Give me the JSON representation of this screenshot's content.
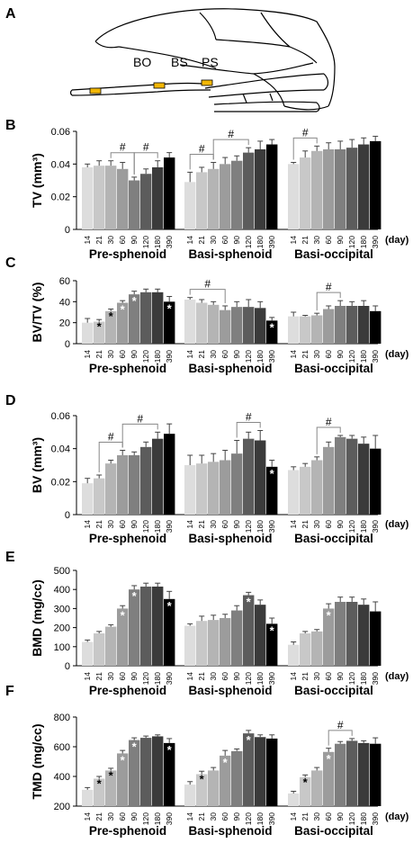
{
  "figure": {
    "panel_a": {
      "letter": "A",
      "labels": [
        "BO",
        "BS",
        "PS"
      ],
      "highlight_color": "#f2b705"
    },
    "day_unit": "(day)",
    "bar_colors": [
      "#dddddd",
      "#c8c8c8",
      "#b4b4b4",
      "#9c9c9c",
      "#7f7f7f",
      "#5c5c5c",
      "#3b3b3b",
      "#000000"
    ],
    "error_color": "#444444",
    "significance_marker": "#",
    "asterisk": "*"
  },
  "chart_data": [
    {
      "panel": "B",
      "type": "bar",
      "ylabel": "TV (mm³)",
      "ylim": [
        0,
        0.06
      ],
      "yticks": [
        "0",
        "0.02",
        "0.04",
        "0.06"
      ],
      "grid": false,
      "groups": [
        {
          "name": "Pre-sphenoid",
          "categories": [
            "14",
            "21",
            "30",
            "60",
            "90",
            "120",
            "180",
            "390"
          ],
          "values": [
            0.038,
            0.039,
            0.039,
            0.037,
            0.03,
            0.034,
            0.038,
            0.044
          ],
          "errors": [
            0.002,
            0.003,
            0.003,
            0.004,
            0.002,
            0.003,
            0.004,
            0.003
          ],
          "asterisks": [
            false,
            false,
            false,
            false,
            false,
            false,
            false,
            false
          ]
        },
        {
          "name": "Basi-sphenoid",
          "categories": [
            "14",
            "21",
            "30",
            "60",
            "90",
            "120",
            "180",
            "390"
          ],
          "values": [
            0.029,
            0.035,
            0.037,
            0.04,
            0.042,
            0.047,
            0.049,
            0.052
          ],
          "errors": [
            0.006,
            0.003,
            0.004,
            0.004,
            0.003,
            0.003,
            0.005,
            0.003
          ],
          "asterisks": [
            false,
            false,
            false,
            false,
            false,
            false,
            false,
            false
          ]
        },
        {
          "name": "Basi-occipital",
          "categories": [
            "14",
            "21",
            "30",
            "60",
            "90",
            "120",
            "180",
            "390"
          ],
          "values": [
            0.04,
            0.044,
            0.048,
            0.049,
            0.049,
            0.05,
            0.052,
            0.054
          ],
          "errors": [
            0.001,
            0.004,
            0.003,
            0.004,
            0.005,
            0.005,
            0.004,
            0.003
          ],
          "asterisks": [
            false,
            false,
            false,
            false,
            false,
            false,
            false,
            false
          ]
        }
      ],
      "significance": [
        {
          "group": 0,
          "from": 2,
          "to": 4,
          "label": "#"
        },
        {
          "group": 0,
          "from": 4,
          "to": 6,
          "label": "#"
        },
        {
          "group": 1,
          "from": 0,
          "to": 2,
          "label": "#"
        },
        {
          "group": 1,
          "from": 2,
          "to": 5,
          "label": "#"
        },
        {
          "group": 2,
          "from": 0,
          "to": 2,
          "label": "#"
        }
      ]
    },
    {
      "panel": "C",
      "type": "bar",
      "ylabel": "BV/TV (%)",
      "ylim": [
        0,
        60
      ],
      "yticks": [
        "0",
        "20",
        "40",
        "60"
      ],
      "grid": false,
      "groups": [
        {
          "name": "Pre-sphenoid",
          "categories": [
            "14",
            "21",
            "30",
            "60",
            "90",
            "120",
            "180",
            "390"
          ],
          "values": [
            20,
            21,
            31,
            39,
            47,
            49,
            49,
            40
          ],
          "errors": [
            4,
            2,
            2,
            2,
            3,
            3,
            3,
            5
          ],
          "asterisks": [
            false,
            true,
            true,
            true,
            true,
            false,
            false,
            true
          ]
        },
        {
          "name": "Basi-sphenoid",
          "categories": [
            "14",
            "21",
            "30",
            "60",
            "90",
            "120",
            "180",
            "390"
          ],
          "values": [
            42,
            39,
            37,
            32,
            35,
            35,
            34,
            22
          ],
          "errors": [
            2,
            3,
            3,
            4,
            5,
            7,
            6,
            3
          ],
          "asterisks": [
            false,
            false,
            false,
            false,
            false,
            false,
            false,
            true
          ]
        },
        {
          "name": "Basi-occipital",
          "categories": [
            "14",
            "21",
            "30",
            "60",
            "90",
            "120",
            "180",
            "390"
          ],
          "values": [
            26,
            26,
            27,
            33,
            36,
            36,
            36,
            31
          ],
          "errors": [
            4,
            1,
            2,
            3,
            5,
            4,
            5,
            5
          ],
          "asterisks": [
            false,
            false,
            false,
            false,
            false,
            false,
            false,
            false
          ]
        }
      ],
      "significance": [
        {
          "group": 1,
          "from": 0,
          "to": 3,
          "label": "#"
        },
        {
          "group": 2,
          "from": 2,
          "to": 4,
          "label": "#"
        }
      ]
    },
    {
      "panel": "D",
      "type": "bar",
      "ylabel": "BV (mm³)",
      "ylim": [
        0,
        0.06
      ],
      "yticks": [
        "0",
        "0.02",
        "0.04",
        "0.06"
      ],
      "grid": false,
      "groups": [
        {
          "name": "Pre-sphenoid",
          "categories": [
            "14",
            "21",
            "30",
            "60",
            "90",
            "120",
            "180",
            "390"
          ],
          "values": [
            0.019,
            0.022,
            0.031,
            0.036,
            0.036,
            0.041,
            0.046,
            0.049
          ],
          "errors": [
            0.003,
            0.002,
            0.002,
            0.003,
            0.002,
            0.003,
            0.004,
            0.006
          ],
          "asterisks": [
            false,
            false,
            false,
            false,
            false,
            false,
            false,
            false
          ]
        },
        {
          "name": "Basi-sphenoid",
          "categories": [
            "14",
            "21",
            "30",
            "60",
            "90",
            "120",
            "180",
            "390"
          ],
          "values": [
            0.03,
            0.031,
            0.032,
            0.033,
            0.037,
            0.046,
            0.045,
            0.029
          ],
          "errors": [
            0.006,
            0.005,
            0.005,
            0.006,
            0.008,
            0.004,
            0.006,
            0.004
          ],
          "asterisks": [
            false,
            false,
            false,
            false,
            false,
            false,
            false,
            true
          ]
        },
        {
          "name": "Basi-occipital",
          "categories": [
            "14",
            "21",
            "30",
            "60",
            "90",
            "120",
            "180",
            "390"
          ],
          "values": [
            0.027,
            0.029,
            0.033,
            0.041,
            0.047,
            0.046,
            0.043,
            0.04
          ],
          "errors": [
            0.002,
            0.002,
            0.002,
            0.003,
            0.001,
            0.002,
            0.004,
            0.008
          ],
          "asterisks": [
            false,
            false,
            false,
            false,
            false,
            false,
            false,
            false
          ]
        }
      ],
      "significance": [
        {
          "group": 0,
          "from": 1,
          "to": 3,
          "label": "#"
        },
        {
          "group": 0,
          "from": 3,
          "to": 6,
          "label": "#"
        },
        {
          "group": 1,
          "from": 4,
          "to": 6,
          "label": "#"
        },
        {
          "group": 2,
          "from": 2,
          "to": 4,
          "label": "#"
        }
      ]
    },
    {
      "panel": "E",
      "type": "bar",
      "ylabel": "BMD (mg/cc)",
      "ylim": [
        0,
        500
      ],
      "yticks": [
        "0",
        "100",
        "200",
        "300",
        "400",
        "500"
      ],
      "grid": false,
      "groups": [
        {
          "name": "Pre-sphenoid",
          "categories": [
            "14",
            "21",
            "30",
            "60",
            "90",
            "120",
            "180",
            "390"
          ],
          "values": [
            125,
            170,
            205,
            300,
            400,
            415,
            415,
            350
          ],
          "errors": [
            10,
            10,
            10,
            15,
            20,
            18,
            18,
            40
          ],
          "asterisks": [
            false,
            false,
            false,
            true,
            true,
            false,
            false,
            true
          ]
        },
        {
          "name": "Basi-sphenoid",
          "categories": [
            "14",
            "21",
            "30",
            "60",
            "90",
            "120",
            "180",
            "390"
          ],
          "values": [
            210,
            235,
            240,
            250,
            290,
            370,
            320,
            220
          ],
          "errors": [
            10,
            25,
            25,
            20,
            25,
            15,
            25,
            30
          ],
          "asterisks": [
            false,
            false,
            false,
            false,
            false,
            true,
            false,
            true
          ]
        },
        {
          "name": "Basi-occipital",
          "categories": [
            "14",
            "21",
            "30",
            "60",
            "90",
            "120",
            "180",
            "390"
          ],
          "values": [
            110,
            170,
            180,
            300,
            335,
            335,
            320,
            285
          ],
          "errors": [
            15,
            10,
            10,
            25,
            25,
            25,
            30,
            50
          ],
          "asterisks": [
            false,
            false,
            false,
            true,
            false,
            false,
            false,
            false
          ]
        }
      ],
      "significance": []
    },
    {
      "panel": "F",
      "type": "bar",
      "ylabel": "TMD (mg/cc)",
      "ylim": [
        200,
        800
      ],
      "yticks": [
        "200",
        "400",
        "600",
        "800"
      ],
      "grid": false,
      "groups": [
        {
          "name": "Pre-sphenoid",
          "categories": [
            "14",
            "21",
            "30",
            "60",
            "90",
            "120",
            "180",
            "390"
          ],
          "values": [
            310,
            385,
            440,
            555,
            645,
            660,
            670,
            625
          ],
          "errors": [
            15,
            15,
            15,
            20,
            15,
            12,
            10,
            30
          ],
          "asterisks": [
            false,
            true,
            true,
            true,
            true,
            false,
            false,
            true
          ]
        },
        {
          "name": "Basi-sphenoid",
          "categories": [
            "14",
            "21",
            "30",
            "60",
            "90",
            "120",
            "180",
            "390"
          ],
          "values": [
            345,
            415,
            440,
            540,
            570,
            690,
            665,
            655
          ],
          "errors": [
            20,
            20,
            20,
            35,
            15,
            20,
            15,
            25
          ],
          "asterisks": [
            false,
            true,
            false,
            true,
            false,
            true,
            false,
            false
          ]
        },
        {
          "name": "Basi-occipital",
          "categories": [
            "14",
            "21",
            "30",
            "60",
            "90",
            "120",
            "180",
            "390"
          ],
          "values": [
            285,
            395,
            440,
            565,
            620,
            640,
            625,
            620
          ],
          "errors": [
            15,
            15,
            20,
            25,
            15,
            15,
            15,
            40
          ],
          "asterisks": [
            false,
            true,
            false,
            true,
            false,
            false,
            false,
            false
          ]
        }
      ],
      "significance": [
        {
          "group": 2,
          "from": 3,
          "to": 5,
          "label": "#"
        }
      ]
    }
  ]
}
